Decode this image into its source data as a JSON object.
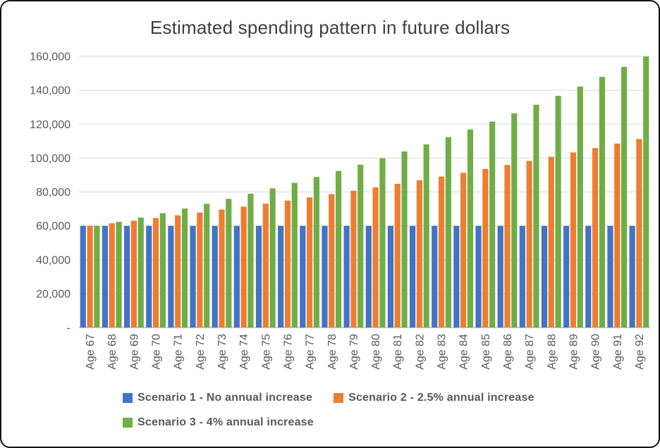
{
  "title": "Estimated spending pattern in future dollars",
  "chart_data": {
    "type": "bar",
    "title": "Estimated spending pattern in future dollars",
    "categories": [
      "Age 67",
      "Age 68",
      "Age 69",
      "Age 70",
      "Age 71",
      "Age 72",
      "Age 73",
      "Age 74",
      "Age 75",
      "Age 76",
      "Age 77",
      "Age 78",
      "Age 79",
      "Age 80",
      "Age 81",
      "Age 82",
      "Age 83",
      "Age 84",
      "Age 85",
      "Age 86",
      "Age 87",
      "Age 88",
      "Age 89",
      "Age 90",
      "Age 91",
      "Age 92"
    ],
    "series": [
      {
        "name": "Scenario 1 - No annual increase",
        "color": "#4472C4",
        "values": [
          60000,
          60000,
          60000,
          60000,
          60000,
          60000,
          60000,
          60000,
          60000,
          60000,
          60000,
          60000,
          60000,
          60000,
          60000,
          60000,
          60000,
          60000,
          60000,
          60000,
          60000,
          60000,
          60000,
          60000,
          60000,
          60000
        ]
      },
      {
        "name": "Scenario 2 - 2.5% annual increase",
        "color": "#ED7D31",
        "values": [
          60000,
          61500,
          63038,
          64613,
          66229,
          67884,
          69582,
          71321,
          73104,
          74932,
          76805,
          78725,
          80693,
          82711,
          84778,
          86898,
          89070,
          91297,
          93580,
          95919,
          98317,
          100775,
          103294,
          105877,
          108524,
          111237
        ]
      },
      {
        "name": "Scenario 3 - 4% annual increase",
        "color": "#70AD47",
        "values": [
          60000,
          62400,
          64896,
          67492,
          70192,
          72999,
          75919,
          78956,
          82114,
          85399,
          88815,
          92367,
          96062,
          99904,
          103888,
          108044,
          112365,
          116860,
          121534,
          126396,
          131452,
          136710,
          142178,
          147865,
          153780,
          159931
        ]
      }
    ],
    "ylim": [
      0,
      160000
    ],
    "ytick_step": 20000,
    "ytick_labels": [
      "-",
      "20,000",
      "40,000",
      "60,000",
      "80,000",
      "100,000",
      "120,000",
      "140,000",
      "160,000"
    ],
    "grid": true,
    "legend_position": "bottom",
    "colors": {
      "grid": "#D9D9D9",
      "axis": "#BFBFBF",
      "axis_text": "#595959",
      "title_text": "#404040"
    }
  }
}
